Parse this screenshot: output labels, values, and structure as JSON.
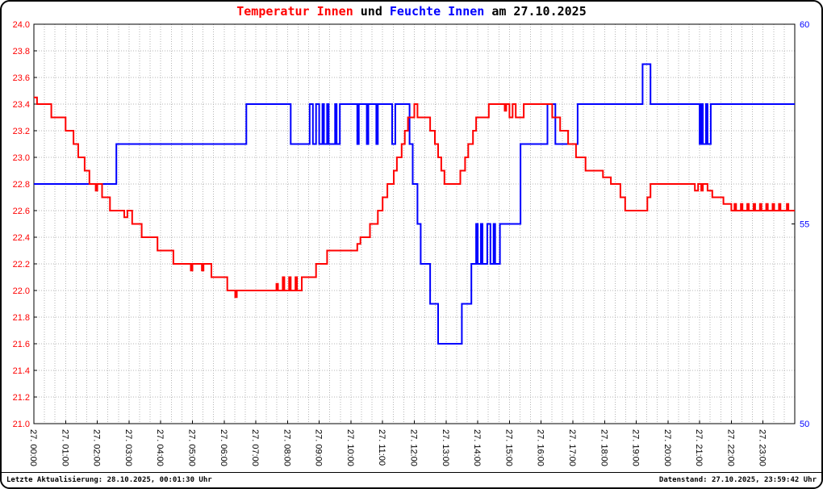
{
  "title": {
    "parts": [
      {
        "text": "Temperatur Innen",
        "color": "#ff0000"
      },
      {
        "text": " und ",
        "color": "#000000"
      },
      {
        "text": "Feuchte Innen",
        "color": "#0000ff"
      },
      {
        "text": " am 27.10.2025",
        "color": "#000000"
      }
    ]
  },
  "footer": {
    "left": "Letzte Aktualisierung: 28.10.2025, 00:01:30 Uhr",
    "right": "Datenstand: 27.10.2025, 23:59:42 Uhr"
  },
  "chart_data": {
    "type": "line",
    "title": "Temperatur Innen und Feuchte Innen am 27.10.2025",
    "grid": {
      "color": "#b5b5b5",
      "vertical_minutes": 20,
      "horizontal_step": 0.2
    },
    "x_axis": {
      "range": [
        0,
        24
      ],
      "labels": [
        "27. 00:00",
        "27. 01:00",
        "27. 02:00",
        "27. 03:00",
        "27. 04:00",
        "27. 05:00",
        "27. 06:00",
        "27. 07:00",
        "27. 08:00",
        "27. 09:00",
        "27. 10:00",
        "27. 11:00",
        "27. 12:00",
        "27. 13:00",
        "27. 14:00",
        "27. 15:00",
        "27. 16:00",
        "27. 17:00",
        "27. 18:00",
        "27. 19:00",
        "27. 20:00",
        "27. 21:00",
        "27. 22:00",
        "27. 23:00"
      ]
    },
    "y_left": {
      "min": 21.0,
      "max": 24.0,
      "tick_step": 0.2,
      "color": "#ff0000"
    },
    "y_right": {
      "min": 50,
      "max": 60,
      "ticks": [
        50,
        55,
        60
      ],
      "color": "#0000ff"
    },
    "series": [
      {
        "name": "Feuchte Innen",
        "axis": "right",
        "color": "#0000ff",
        "mode": "step",
        "points": [
          [
            0,
            56
          ],
          [
            2.6,
            57
          ],
          [
            6.7,
            58
          ],
          [
            8.1,
            57
          ],
          [
            8.7,
            58
          ],
          [
            8.8,
            57
          ],
          [
            8.9,
            58
          ],
          [
            9.0,
            57
          ],
          [
            9.1,
            58
          ],
          [
            9.15,
            57
          ],
          [
            9.25,
            58
          ],
          [
            9.3,
            57
          ],
          [
            9.5,
            58
          ],
          [
            9.55,
            57
          ],
          [
            9.65,
            58
          ],
          [
            10.2,
            57
          ],
          [
            10.25,
            58
          ],
          [
            10.5,
            57
          ],
          [
            10.55,
            58
          ],
          [
            10.8,
            57
          ],
          [
            10.85,
            58
          ],
          [
            11.3,
            57
          ],
          [
            11.4,
            58
          ],
          [
            11.85,
            57
          ],
          [
            11.95,
            56
          ],
          [
            12.1,
            55
          ],
          [
            12.2,
            54
          ],
          [
            12.5,
            53
          ],
          [
            12.75,
            52
          ],
          [
            13.5,
            53
          ],
          [
            13.8,
            54
          ],
          [
            13.95,
            55
          ],
          [
            14.0,
            54
          ],
          [
            14.1,
            55
          ],
          [
            14.15,
            54
          ],
          [
            14.3,
            55
          ],
          [
            14.4,
            54
          ],
          [
            14.5,
            55
          ],
          [
            14.55,
            54
          ],
          [
            14.7,
            55
          ],
          [
            15.35,
            57
          ],
          [
            16.2,
            58
          ],
          [
            16.45,
            57
          ],
          [
            17.15,
            58
          ],
          [
            19.2,
            59
          ],
          [
            19.45,
            58
          ],
          [
            21.0,
            57
          ],
          [
            21.05,
            58
          ],
          [
            21.1,
            57
          ],
          [
            21.2,
            58
          ],
          [
            21.25,
            57
          ],
          [
            21.35,
            58
          ]
        ]
      },
      {
        "name": "Temperatur Innen",
        "axis": "left",
        "color": "#ff0000",
        "mode": "step",
        "points": [
          [
            0,
            23.45
          ],
          [
            0.1,
            23.4
          ],
          [
            0.55,
            23.3
          ],
          [
            1.0,
            23.2
          ],
          [
            1.25,
            23.1
          ],
          [
            1.4,
            23.0
          ],
          [
            1.6,
            22.9
          ],
          [
            1.75,
            22.8
          ],
          [
            1.95,
            22.75
          ],
          [
            2.0,
            22.8
          ],
          [
            2.15,
            22.7
          ],
          [
            2.4,
            22.6
          ],
          [
            2.85,
            22.55
          ],
          [
            2.95,
            22.6
          ],
          [
            3.1,
            22.5
          ],
          [
            3.4,
            22.4
          ],
          [
            3.9,
            22.3
          ],
          [
            4.4,
            22.2
          ],
          [
            4.95,
            22.15
          ],
          [
            5.0,
            22.2
          ],
          [
            5.3,
            22.15
          ],
          [
            5.35,
            22.2
          ],
          [
            5.6,
            22.1
          ],
          [
            6.1,
            22.0
          ],
          [
            6.35,
            21.95
          ],
          [
            6.4,
            22.0
          ],
          [
            7.65,
            22.05
          ],
          [
            7.7,
            22.0
          ],
          [
            7.85,
            22.1
          ],
          [
            7.9,
            22.0
          ],
          [
            8.05,
            22.1
          ],
          [
            8.1,
            22.0
          ],
          [
            8.25,
            22.1
          ],
          [
            8.3,
            22.0
          ],
          [
            8.45,
            22.1
          ],
          [
            8.9,
            22.2
          ],
          [
            9.25,
            22.3
          ],
          [
            10.2,
            22.35
          ],
          [
            10.3,
            22.4
          ],
          [
            10.6,
            22.5
          ],
          [
            10.85,
            22.6
          ],
          [
            11.0,
            22.7
          ],
          [
            11.15,
            22.8
          ],
          [
            11.35,
            22.9
          ],
          [
            11.45,
            23.0
          ],
          [
            11.6,
            23.1
          ],
          [
            11.7,
            23.2
          ],
          [
            11.8,
            23.3
          ],
          [
            12.0,
            23.4
          ],
          [
            12.1,
            23.3
          ],
          [
            12.5,
            23.2
          ],
          [
            12.65,
            23.1
          ],
          [
            12.75,
            23.0
          ],
          [
            12.85,
            22.9
          ],
          [
            12.95,
            22.8
          ],
          [
            13.45,
            22.9
          ],
          [
            13.6,
            23.0
          ],
          [
            13.7,
            23.1
          ],
          [
            13.85,
            23.2
          ],
          [
            13.95,
            23.3
          ],
          [
            14.35,
            23.4
          ],
          [
            14.85,
            23.35
          ],
          [
            14.9,
            23.4
          ],
          [
            15.0,
            23.3
          ],
          [
            15.1,
            23.4
          ],
          [
            15.2,
            23.3
          ],
          [
            15.45,
            23.4
          ],
          [
            16.35,
            23.3
          ],
          [
            16.6,
            23.2
          ],
          [
            16.85,
            23.1
          ],
          [
            17.1,
            23.0
          ],
          [
            17.4,
            22.9
          ],
          [
            17.95,
            22.85
          ],
          [
            18.2,
            22.8
          ],
          [
            18.5,
            22.7
          ],
          [
            18.65,
            22.6
          ],
          [
            19.35,
            22.7
          ],
          [
            19.45,
            22.8
          ],
          [
            20.85,
            22.75
          ],
          [
            20.95,
            22.8
          ],
          [
            21.05,
            22.75
          ],
          [
            21.1,
            22.8
          ],
          [
            21.25,
            22.75
          ],
          [
            21.4,
            22.7
          ],
          [
            21.75,
            22.65
          ],
          [
            22.0,
            22.6
          ],
          [
            22.1,
            22.65
          ],
          [
            22.15,
            22.6
          ],
          [
            22.3,
            22.65
          ],
          [
            22.35,
            22.6
          ],
          [
            22.5,
            22.65
          ],
          [
            22.55,
            22.6
          ],
          [
            22.7,
            22.65
          ],
          [
            22.75,
            22.6
          ],
          [
            22.9,
            22.65
          ],
          [
            22.95,
            22.6
          ],
          [
            23.1,
            22.65
          ],
          [
            23.15,
            22.6
          ],
          [
            23.3,
            22.65
          ],
          [
            23.35,
            22.6
          ],
          [
            23.5,
            22.65
          ],
          [
            23.55,
            22.6
          ],
          [
            23.75,
            22.65
          ],
          [
            23.8,
            22.6
          ],
          [
            23.95,
            22.6
          ]
        ]
      }
    ]
  }
}
